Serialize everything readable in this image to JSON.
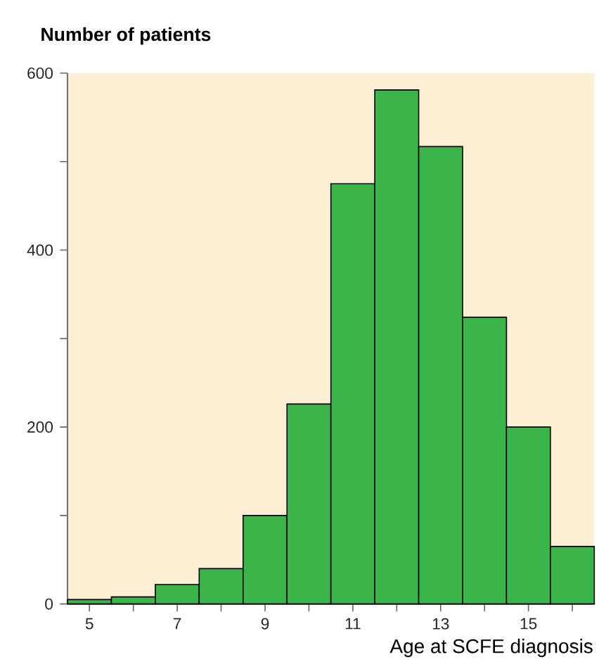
{
  "chart_data": {
    "type": "histogram",
    "title": "Number of patients",
    "xlabel": "Age at SCFE diagnosis",
    "bins": [
      4.5,
      5.5,
      6.5,
      7.5,
      8.5,
      9.5,
      10.5,
      11.5,
      12.5,
      13.5,
      14.5,
      15.5,
      16.5
    ],
    "values": [
      5,
      8,
      22,
      40,
      100,
      226,
      475,
      581,
      517,
      324,
      200,
      65
    ],
    "color": "#3bb54a",
    "xlim": [
      4.5,
      16.5
    ],
    "xticks": [
      5,
      {
        "value": 6,
        "label": null
      },
      7,
      {
        "value": 8,
        "label": null
      },
      9,
      {
        "value": 10,
        "label": null
      },
      11,
      {
        "value": 12,
        "label": null
      },
      13,
      {
        "value": 14,
        "label": null
      },
      15,
      {
        "value": 16,
        "label": null
      }
    ],
    "ylim": [
      0,
      600
    ],
    "yticks": [
      0,
      {
        "value": 100,
        "label": null
      },
      200,
      {
        "value": 300,
        "label": null
      },
      400,
      {
        "value": 500,
        "label": null
      },
      600
    ]
  }
}
